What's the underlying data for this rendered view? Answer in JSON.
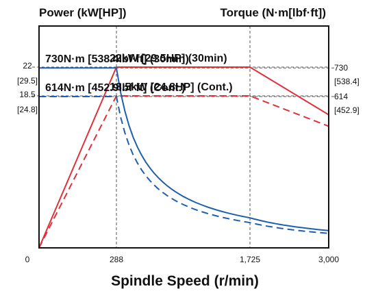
{
  "chart_data": {
    "type": "line",
    "left_axis_title": "Power (kW[HP])",
    "right_axis_title": "Torque (N·m[lbf·ft])",
    "xlabel": "Spindle Speed (r/min)",
    "xlim": [
      0,
      3000
    ],
    "x_ticks": [
      {
        "value": 0,
        "label": "0"
      },
      {
        "value": 288,
        "label": "288"
      },
      {
        "value": 1725,
        "label": "1,725"
      },
      {
        "value": 3000,
        "label": "3,000"
      }
    ],
    "power_ylim": [
      0,
      27
    ],
    "torque_ylim": [
      0,
      900
    ],
    "power_ticks": [
      {
        "value": 22,
        "label": "22",
        "sub": "[29.5]"
      },
      {
        "value": 18.5,
        "label": "18.5",
        "sub": "[24.8]"
      }
    ],
    "torque_ticks": [
      {
        "value": 730,
        "label": "730",
        "sub": "[538.4]"
      },
      {
        "value": 614,
        "label": "614",
        "sub": "[452.9]"
      }
    ],
    "colors": {
      "power": "#e0303a",
      "torque": "#1d5fae",
      "grid": "#555555",
      "frame": "#111111"
    },
    "series": [
      {
        "axis": "power",
        "style": "solid",
        "x": [
          0,
          288,
          1725,
          3000
        ],
        "y": [
          0,
          22,
          22,
          16.2
        ]
      },
      {
        "axis": "power",
        "style": "dashed",
        "x": [
          0,
          288,
          1725,
          3000
        ],
        "y": [
          0,
          18.5,
          18.5,
          14.8
        ]
      },
      {
        "axis": "torque",
        "style": "solid",
        "x": [
          0,
          288
        ],
        "y": [
          730,
          730
        ],
        "hyperbola_k": 210240,
        "hyperbola_to": 3000
      },
      {
        "axis": "torque",
        "style": "dashed",
        "x": [
          0,
          288
        ],
        "y": [
          614,
          614
        ],
        "hyperbola_k": 176832,
        "hyperbola_to": 3000
      }
    ],
    "annotations": [
      {
        "text": "22kW [29.5HP] (30min)",
        "x": 288,
        "y": 22,
        "axis": "power"
      },
      {
        "text": "730N·m [538.4lbf·ft] (30min)",
        "x": 0,
        "y": 730,
        "axis": "torque"
      },
      {
        "text": "18.5kW [24.8HP] (Cont.)",
        "x": 288,
        "y": 18.5,
        "axis": "power"
      },
      {
        "text": "614N·m [452.9lbf·ft] (Cont.)",
        "x": 0,
        "y": 614,
        "axis": "torque"
      }
    ]
  }
}
